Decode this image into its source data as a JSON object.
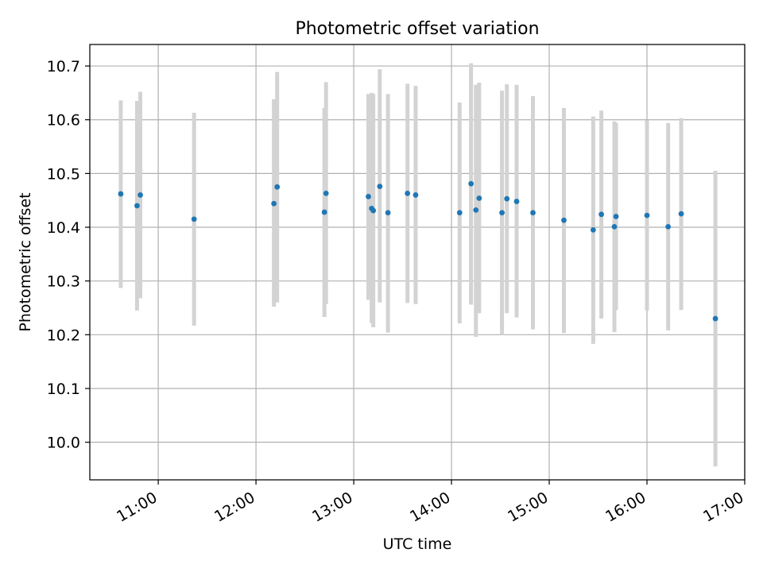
{
  "chart_data": {
    "type": "scatter",
    "title": "Photometric offset variation",
    "xlabel": "UTC time",
    "ylabel": "Photometric offset",
    "x_ticks": [
      "11:00",
      "12:00",
      "13:00",
      "14:00",
      "15:00",
      "16:00",
      "17:00"
    ],
    "y_ticks": [
      "10.0",
      "10.1",
      "10.2",
      "10.3",
      "10.4",
      "10.5",
      "10.6",
      "10.7"
    ],
    "xlim": [
      "10:18",
      "17:00"
    ],
    "ylim": [
      9.93,
      10.74
    ],
    "grid": true,
    "legend": "none",
    "colors": {
      "marker": "#1f77b4",
      "errorbar": "#d3d3d3",
      "grid": "#b0b0b0"
    },
    "points": [
      {
        "x": "10:37",
        "y": 10.462,
        "ylow": 10.287,
        "yhigh": 10.636
      },
      {
        "x": "10:47",
        "y": 10.44,
        "ylow": 10.245,
        "yhigh": 10.635
      },
      {
        "x": "10:49",
        "y": 10.46,
        "ylow": 10.268,
        "yhigh": 10.652
      },
      {
        "x": "11:22",
        "y": 10.415,
        "ylow": 10.217,
        "yhigh": 10.613
      },
      {
        "x": "12:11",
        "y": 10.444,
        "ylow": 10.252,
        "yhigh": 10.638
      },
      {
        "x": "12:13",
        "y": 10.475,
        "ylow": 10.26,
        "yhigh": 10.689
      },
      {
        "x": "12:42",
        "y": 10.428,
        "ylow": 10.233,
        "yhigh": 10.622
      },
      {
        "x": "12:43",
        "y": 10.463,
        "ylow": 10.257,
        "yhigh": 10.67
      },
      {
        "x": "13:09",
        "y": 10.457,
        "ylow": 10.265,
        "yhigh": 10.648
      },
      {
        "x": "13:11",
        "y": 10.435,
        "ylow": 10.222,
        "yhigh": 10.65
      },
      {
        "x": "13:12",
        "y": 10.431,
        "ylow": 10.214,
        "yhigh": 10.648
      },
      {
        "x": "13:16",
        "y": 10.476,
        "ylow": 10.26,
        "yhigh": 10.694
      },
      {
        "x": "13:21",
        "y": 10.427,
        "ylow": 10.204,
        "yhigh": 10.648
      },
      {
        "x": "13:33",
        "y": 10.463,
        "ylow": 10.259,
        "yhigh": 10.667
      },
      {
        "x": "13:38",
        "y": 10.46,
        "ylow": 10.257,
        "yhigh": 10.663
      },
      {
        "x": "14:05",
        "y": 10.427,
        "ylow": 10.221,
        "yhigh": 10.632
      },
      {
        "x": "14:12",
        "y": 10.481,
        "ylow": 10.256,
        "yhigh": 10.705
      },
      {
        "x": "14:15",
        "y": 10.432,
        "ylow": 10.196,
        "yhigh": 10.665
      },
      {
        "x": "14:17",
        "y": 10.454,
        "ylow": 10.24,
        "yhigh": 10.669
      },
      {
        "x": "14:31",
        "y": 10.427,
        "ylow": 10.2,
        "yhigh": 10.654
      },
      {
        "x": "14:34",
        "y": 10.453,
        "ylow": 10.24,
        "yhigh": 10.666
      },
      {
        "x": "14:40",
        "y": 10.448,
        "ylow": 10.232,
        "yhigh": 10.665
      },
      {
        "x": "14:50",
        "y": 10.427,
        "ylow": 10.21,
        "yhigh": 10.644
      },
      {
        "x": "15:09",
        "y": 10.413,
        "ylow": 10.203,
        "yhigh": 10.622
      },
      {
        "x": "15:27",
        "y": 10.395,
        "ylow": 10.183,
        "yhigh": 10.606
      },
      {
        "x": "15:32",
        "y": 10.424,
        "ylow": 10.23,
        "yhigh": 10.617
      },
      {
        "x": "15:40",
        "y": 10.401,
        "ylow": 10.205,
        "yhigh": 10.597
      },
      {
        "x": "15:41",
        "y": 10.42,
        "ylow": 10.246,
        "yhigh": 10.594
      },
      {
        "x": "16:00",
        "y": 10.422,
        "ylow": 10.245,
        "yhigh": 10.599
      },
      {
        "x": "16:13",
        "y": 10.401,
        "ylow": 10.208,
        "yhigh": 10.594
      },
      {
        "x": "16:21",
        "y": 10.425,
        "ylow": 10.246,
        "yhigh": 10.603
      },
      {
        "x": "16:42",
        "y": 10.23,
        "ylow": 9.955,
        "yhigh": 10.505
      }
    ]
  }
}
